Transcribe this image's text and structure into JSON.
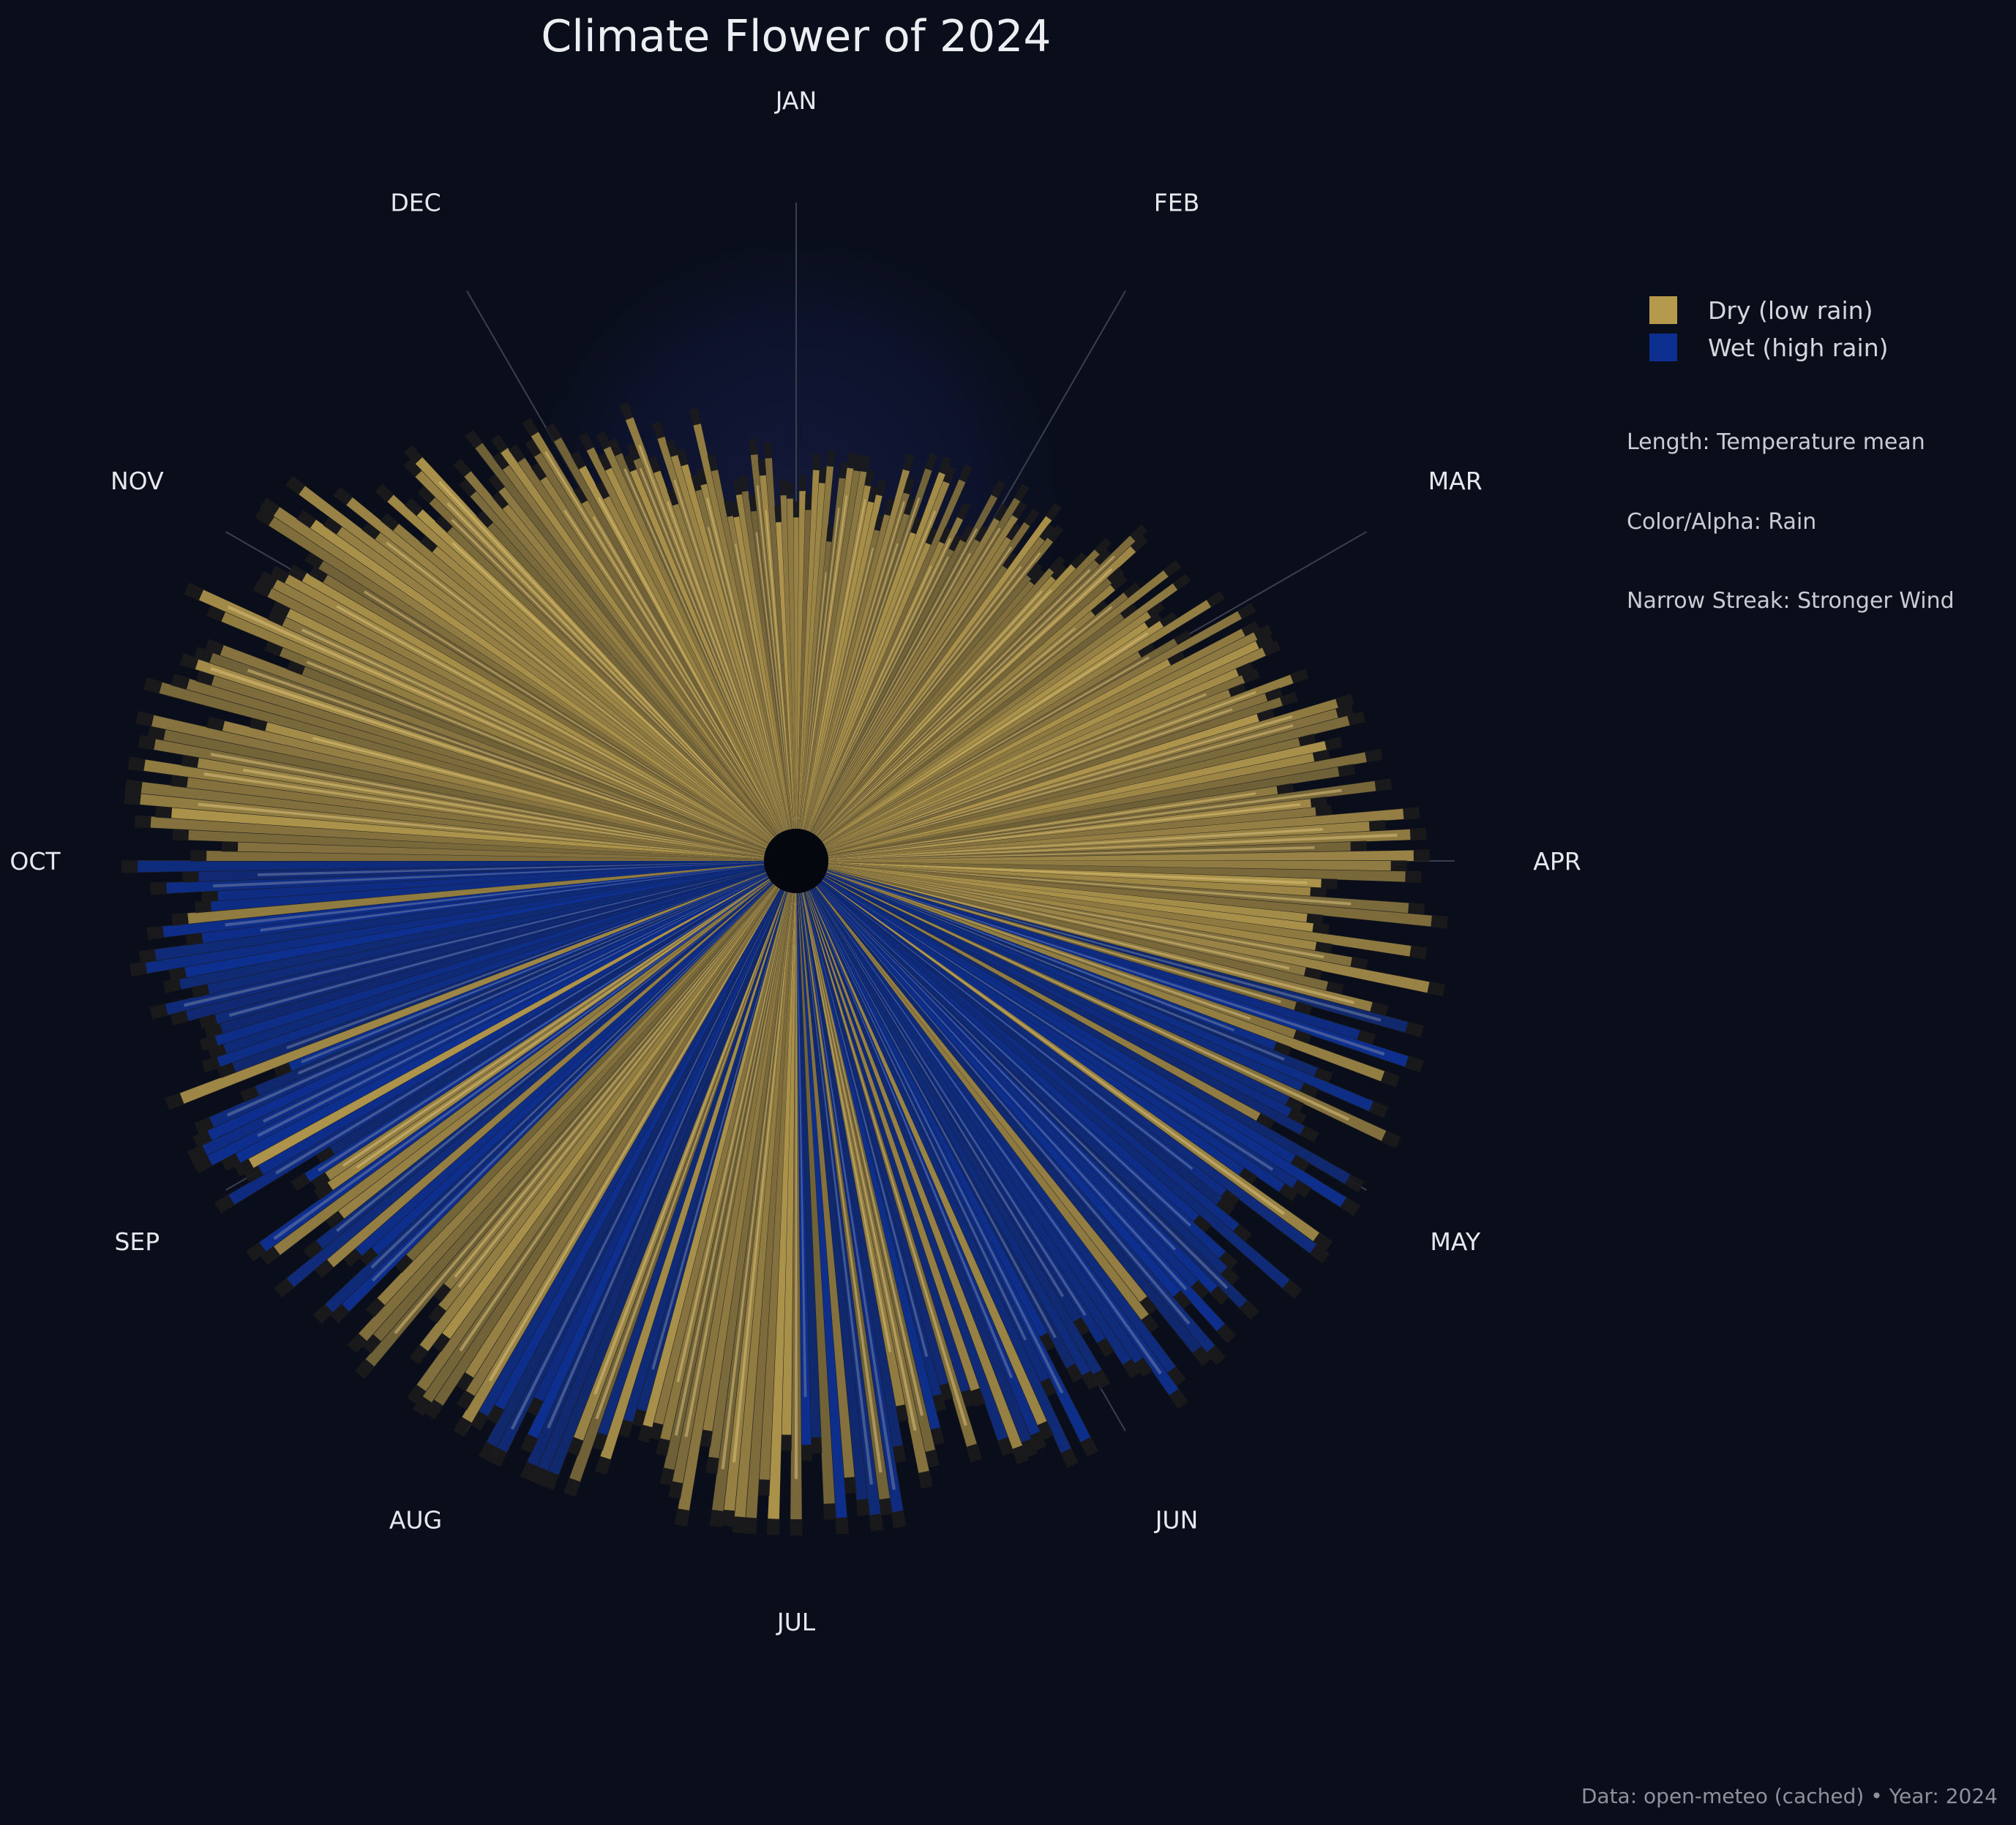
{
  "title": "Climate Flower of 2024",
  "legend": {
    "items": [
      {
        "label": "Dry (low rain)",
        "color": "#b59a4e"
      },
      {
        "label": "Wet (high rain)",
        "color": "#0d2f8f"
      }
    ],
    "placement": "top-right"
  },
  "notes": {
    "length": "Length: Temperature mean",
    "color": "Color/Alpha: Rain",
    "streak": "Narrow Streak: Stronger Wind"
  },
  "footer": "Data: open-meteo (cached)  •  Year: 2024",
  "chart_data": {
    "type": "radial-bar",
    "year": 2024,
    "months": [
      "JAN",
      "FEB",
      "MAR",
      "APR",
      "MAY",
      "JUN",
      "JUL",
      "AUG",
      "SEP",
      "OCT",
      "NOV",
      "DEC"
    ],
    "direction": "clockwise from top",
    "encoding": {
      "length": "temperature mean",
      "color": "rain",
      "streak": "wind"
    },
    "monthly_length_profile": {
      "description": "relative bar length (0-1, fraction of max) sampled at start of each month, read from image",
      "values": [
        0.54,
        0.58,
        0.7,
        0.9,
        0.92,
        0.94,
        0.99,
        0.99,
        0.96,
        0.99,
        0.91,
        0.72
      ]
    },
    "wet_periods": [
      {
        "from": "mid-APR",
        "to": "end-JUN"
      },
      {
        "from": "mid-JUL",
        "to": "end-JUL"
      },
      {
        "from": "mid-AUG",
        "to": "end-SEP"
      }
    ],
    "colors": {
      "dry": "#b59a4e",
      "wet": "#0d2f8f",
      "background": "#0a0e1a"
    }
  }
}
